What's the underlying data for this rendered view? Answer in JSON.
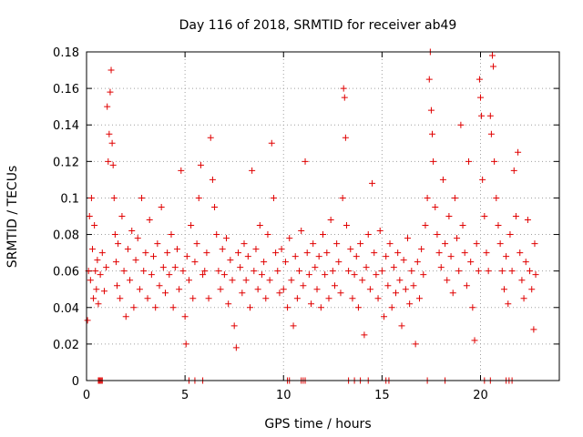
{
  "chart_data": {
    "type": "scatter",
    "title": "Day 116 of 2018, SRMTID for receiver ab49",
    "xlabel": "GPS time / hours",
    "ylabel": "SRMTID / TECUs",
    "xlim": [
      0,
      24
    ],
    "ylim": [
      0,
      0.18
    ],
    "x_ticks": [
      0,
      5,
      10,
      15,
      20
    ],
    "x_tick_labels": [
      "0",
      "5",
      "10",
      "15",
      "20"
    ],
    "y_ticks": [
      0,
      0.02,
      0.04,
      0.06,
      0.08,
      0.1,
      0.12,
      0.14,
      0.16,
      0.18
    ],
    "y_tick_labels": [
      "0",
      "0.02",
      "0.04",
      "0.06",
      "0.08",
      "0.1",
      "0.12",
      "0.14",
      "0.16",
      "0.18"
    ],
    "grid": true,
    "marker": "+",
    "color": "#e00000",
    "series": [
      {
        "name": "SRMTID",
        "points": [
          [
            0.05,
            0.033
          ],
          [
            0.1,
            0.06
          ],
          [
            0.15,
            0.09
          ],
          [
            0.2,
            0.055
          ],
          [
            0.25,
            0.1
          ],
          [
            0.3,
            0.072
          ],
          [
            0.35,
            0.045
          ],
          [
            0.4,
            0.085
          ],
          [
            0.45,
            0.06
          ],
          [
            0.5,
            0.05
          ],
          [
            0.55,
            0.066
          ],
          [
            0.6,
            0.042
          ],
          [
            0.7,
            0.058
          ],
          [
            0.8,
            0.07
          ],
          [
            0.9,
            0.049
          ],
          [
            1.0,
            0.062
          ],
          [
            1.05,
            0.15
          ],
          [
            1.1,
            0.12
          ],
          [
            1.15,
            0.135
          ],
          [
            1.2,
            0.158
          ],
          [
            1.25,
            0.17
          ],
          [
            1.3,
            0.13
          ],
          [
            1.35,
            0.118
          ],
          [
            1.4,
            0.1
          ],
          [
            1.45,
            0.08
          ],
          [
            1.5,
            0.065
          ],
          [
            1.55,
            0.052
          ],
          [
            1.6,
            0.075
          ],
          [
            1.7,
            0.045
          ],
          [
            1.8,
            0.09
          ],
          [
            1.9,
            0.06
          ],
          [
            2.0,
            0.035
          ],
          [
            2.1,
            0.072
          ],
          [
            2.2,
            0.055
          ],
          [
            2.3,
            0.082
          ],
          [
            2.4,
            0.04
          ],
          [
            2.5,
            0.066
          ],
          [
            2.6,
            0.078
          ],
          [
            2.7,
            0.05
          ],
          [
            2.8,
            0.1
          ],
          [
            2.9,
            0.06
          ],
          [
            3.0,
            0.07
          ],
          [
            3.1,
            0.045
          ],
          [
            3.2,
            0.088
          ],
          [
            3.3,
            0.058
          ],
          [
            3.4,
            0.068
          ],
          [
            3.5,
            0.04
          ],
          [
            3.6,
            0.075
          ],
          [
            3.7,
            0.052
          ],
          [
            3.8,
            0.095
          ],
          [
            3.9,
            0.062
          ],
          [
            4.0,
            0.048
          ],
          [
            4.1,
            0.07
          ],
          [
            4.2,
            0.058
          ],
          [
            4.3,
            0.08
          ],
          [
            4.4,
            0.04
          ],
          [
            4.5,
            0.062
          ],
          [
            4.6,
            0.072
          ],
          [
            4.7,
            0.05
          ],
          [
            4.8,
            0.115
          ],
          [
            4.9,
            0.06
          ],
          [
            5.0,
            0.035
          ],
          [
            5.05,
            0.02
          ],
          [
            5.1,
            0.068
          ],
          [
            5.2,
            0.055
          ],
          [
            5.3,
            0.085
          ],
          [
            5.4,
            0.045
          ],
          [
            5.5,
            0.065
          ],
          [
            5.6,
            0.075
          ],
          [
            5.7,
            0.1
          ],
          [
            5.8,
            0.118
          ],
          [
            5.9,
            0.058
          ],
          [
            6.0,
            0.06
          ],
          [
            6.1,
            0.07
          ],
          [
            6.2,
            0.045
          ],
          [
            6.3,
            0.133
          ],
          [
            6.4,
            0.11
          ],
          [
            6.5,
            0.095
          ],
          [
            6.6,
            0.08
          ],
          [
            6.7,
            0.06
          ],
          [
            6.8,
            0.05
          ],
          [
            6.9,
            0.072
          ],
          [
            7.0,
            0.058
          ],
          [
            7.1,
            0.078
          ],
          [
            7.2,
            0.042
          ],
          [
            7.3,
            0.066
          ],
          [
            7.4,
            0.055
          ],
          [
            7.5,
            0.03
          ],
          [
            7.6,
            0.018
          ],
          [
            7.7,
            0.07
          ],
          [
            7.8,
            0.062
          ],
          [
            7.9,
            0.048
          ],
          [
            8.0,
            0.075
          ],
          [
            8.1,
            0.055
          ],
          [
            8.2,
            0.068
          ],
          [
            8.3,
            0.04
          ],
          [
            8.4,
            0.115
          ],
          [
            8.5,
            0.06
          ],
          [
            8.6,
            0.072
          ],
          [
            8.7,
            0.05
          ],
          [
            8.8,
            0.085
          ],
          [
            8.9,
            0.058
          ],
          [
            9.0,
            0.065
          ],
          [
            9.1,
            0.045
          ],
          [
            9.2,
            0.08
          ],
          [
            9.3,
            0.055
          ],
          [
            9.4,
            0.13
          ],
          [
            9.5,
            0.1
          ],
          [
            9.6,
            0.07
          ],
          [
            9.7,
            0.06
          ],
          [
            9.8,
            0.048
          ],
          [
            9.9,
            0.072
          ],
          [
            10.0,
            0.05
          ],
          [
            10.1,
            0.065
          ],
          [
            10.2,
            0.04
          ],
          [
            10.3,
            0.078
          ],
          [
            10.4,
            0.055
          ],
          [
            10.5,
            0.03
          ],
          [
            10.6,
            0.068
          ],
          [
            10.7,
            0.045
          ],
          [
            10.8,
            0.06
          ],
          [
            10.9,
            0.082
          ],
          [
            11.0,
            0.052
          ],
          [
            11.1,
            0.12
          ],
          [
            11.2,
            0.07
          ],
          [
            11.3,
            0.058
          ],
          [
            11.4,
            0.042
          ],
          [
            11.5,
            0.075
          ],
          [
            11.6,
            0.062
          ],
          [
            11.7,
            0.05
          ],
          [
            11.8,
            0.068
          ],
          [
            11.9,
            0.04
          ],
          [
            12.0,
            0.08
          ],
          [
            12.1,
            0.058
          ],
          [
            12.2,
            0.07
          ],
          [
            12.3,
            0.045
          ],
          [
            12.4,
            0.088
          ],
          [
            12.5,
            0.06
          ],
          [
            12.6,
            0.052
          ],
          [
            12.7,
            0.075
          ],
          [
            12.8,
            0.065
          ],
          [
            12.9,
            0.048
          ],
          [
            13.0,
            0.1
          ],
          [
            13.05,
            0.16
          ],
          [
            13.1,
            0.155
          ],
          [
            13.15,
            0.133
          ],
          [
            13.2,
            0.085
          ],
          [
            13.3,
            0.06
          ],
          [
            13.4,
            0.072
          ],
          [
            13.5,
            0.045
          ],
          [
            13.6,
            0.058
          ],
          [
            13.7,
            0.068
          ],
          [
            13.8,
            0.04
          ],
          [
            13.9,
            0.075
          ],
          [
            14.0,
            0.055
          ],
          [
            14.1,
            0.025
          ],
          [
            14.2,
            0.062
          ],
          [
            14.3,
            0.08
          ],
          [
            14.4,
            0.05
          ],
          [
            14.5,
            0.108
          ],
          [
            14.6,
            0.07
          ],
          [
            14.7,
            0.058
          ],
          [
            14.8,
            0.045
          ],
          [
            14.9,
            0.082
          ],
          [
            15.0,
            0.06
          ],
          [
            15.1,
            0.035
          ],
          [
            15.2,
            0.068
          ],
          [
            15.3,
            0.052
          ],
          [
            15.4,
            0.075
          ],
          [
            15.5,
            0.04
          ],
          [
            15.6,
            0.062
          ],
          [
            15.7,
            0.048
          ],
          [
            15.8,
            0.07
          ],
          [
            15.9,
            0.055
          ],
          [
            16.0,
            0.03
          ],
          [
            16.1,
            0.066
          ],
          [
            16.2,
            0.05
          ],
          [
            16.3,
            0.078
          ],
          [
            16.4,
            0.042
          ],
          [
            16.5,
            0.06
          ],
          [
            16.6,
            0.052
          ],
          [
            16.7,
            0.02
          ],
          [
            16.8,
            0.065
          ],
          [
            16.9,
            0.045
          ],
          [
            17.0,
            0.072
          ],
          [
            17.1,
            0.058
          ],
          [
            17.2,
            0.085
          ],
          [
            17.3,
            0.1
          ],
          [
            17.4,
            0.165
          ],
          [
            17.45,
            0.18
          ],
          [
            17.5,
            0.148
          ],
          [
            17.55,
            0.135
          ],
          [
            17.6,
            0.12
          ],
          [
            17.7,
            0.095
          ],
          [
            17.8,
            0.08
          ],
          [
            17.9,
            0.07
          ],
          [
            18.0,
            0.062
          ],
          [
            18.1,
            0.11
          ],
          [
            18.2,
            0.075
          ],
          [
            18.3,
            0.055
          ],
          [
            18.4,
            0.09
          ],
          [
            18.5,
            0.068
          ],
          [
            18.6,
            0.048
          ],
          [
            18.7,
            0.1
          ],
          [
            18.8,
            0.078
          ],
          [
            18.9,
            0.06
          ],
          [
            19.0,
            0.14
          ],
          [
            19.1,
            0.085
          ],
          [
            19.2,
            0.07
          ],
          [
            19.3,
            0.052
          ],
          [
            19.4,
            0.12
          ],
          [
            19.5,
            0.065
          ],
          [
            19.6,
            0.04
          ],
          [
            19.7,
            0.022
          ],
          [
            19.8,
            0.075
          ],
          [
            19.9,
            0.06
          ],
          [
            19.95,
            0.165
          ],
          [
            20.0,
            0.155
          ],
          [
            20.05,
            0.145
          ],
          [
            20.1,
            0.11
          ],
          [
            20.2,
            0.09
          ],
          [
            20.3,
            0.07
          ],
          [
            20.4,
            0.06
          ],
          [
            20.5,
            0.145
          ],
          [
            20.55,
            0.135
          ],
          [
            20.6,
            0.178
          ],
          [
            20.65,
            0.172
          ],
          [
            20.7,
            0.12
          ],
          [
            20.8,
            0.1
          ],
          [
            20.9,
            0.085
          ],
          [
            21.0,
            0.075
          ],
          [
            21.1,
            0.06
          ],
          [
            21.2,
            0.05
          ],
          [
            21.3,
            0.068
          ],
          [
            21.4,
            0.042
          ],
          [
            21.5,
            0.08
          ],
          [
            21.6,
            0.06
          ],
          [
            21.7,
            0.115
          ],
          [
            21.8,
            0.09
          ],
          [
            21.9,
            0.125
          ],
          [
            22.0,
            0.07
          ],
          [
            22.1,
            0.055
          ],
          [
            22.2,
            0.045
          ],
          [
            22.3,
            0.065
          ],
          [
            22.4,
            0.088
          ],
          [
            22.5,
            0.06
          ],
          [
            22.6,
            0.05
          ],
          [
            22.7,
            0.028
          ],
          [
            22.75,
            0.075
          ],
          [
            22.8,
            0.058
          ]
        ]
      }
    ],
    "zero_points_x": [
      0.6,
      0.65,
      0.7,
      0.75,
      0.8,
      5.2,
      5.5,
      5.9,
      10.2,
      10.3,
      10.9,
      11.0,
      11.1,
      13.3,
      13.6,
      13.9,
      14.3,
      15.2,
      15.35,
      17.3,
      18.2,
      20.2,
      20.5,
      21.3,
      21.45,
      21.6
    ]
  }
}
